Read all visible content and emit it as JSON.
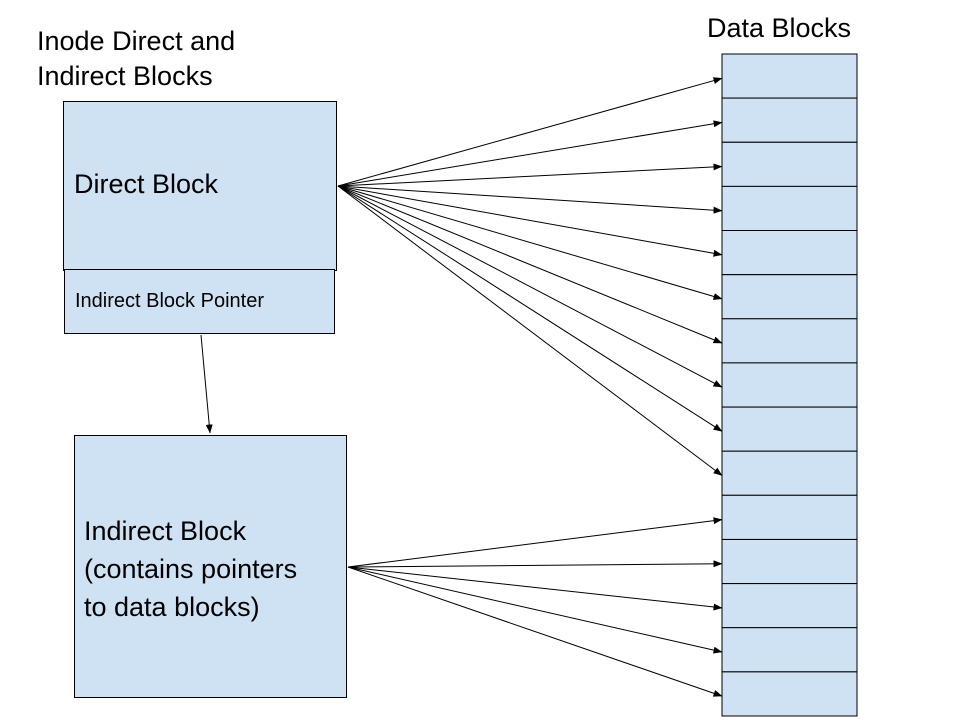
{
  "diagram": {
    "inode_title": "Inode Direct and\nIndirect Blocks",
    "data_blocks_title": "Data Blocks",
    "direct_block_label": "Direct Block",
    "indirect_pointer_label": "Indirect Block Pointer",
    "indirect_block_label": "Indirect Block\n(contains pointers\nto data blocks)",
    "data_block_count": 15,
    "direct_pointer_targets": [
      0,
      1,
      2,
      3,
      4,
      5,
      6,
      7,
      8,
      9
    ],
    "indirect_pointer_targets": [
      10,
      11,
      12,
      13,
      14
    ],
    "colors": {
      "block_fill": "#cfe2f3",
      "line": "#000000"
    }
  }
}
